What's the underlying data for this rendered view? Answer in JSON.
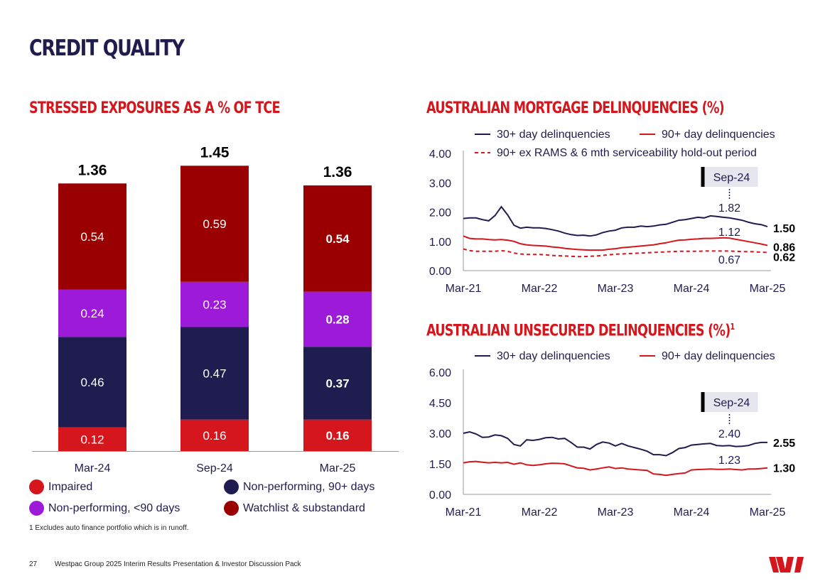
{
  "page": {
    "title": "CREDIT QUALITY",
    "footnote": "1 Excludes auto finance portfolio which is in runoff.",
    "page_number": "27",
    "footer_text": "Westpac Group 2025 Interim Results Presentation & Investor Discussion Pack"
  },
  "colors": {
    "navy": "#1f1c4f",
    "red": "#d5161d",
    "purple": "#9d1ad9",
    "maroon": "#9b0000"
  },
  "legend": {
    "impaired": "Impaired",
    "np90": "Non-performing, 90+ days",
    "np_lt90": "Non-performing, <90 days",
    "watchlist": "Watchlist & substandard"
  },
  "chart_data": [
    {
      "type": "bar",
      "stacked": true,
      "title": "STRESSED EXPOSURES AS A % OF TCE",
      "categories": [
        "Mar-24",
        "Sep-24",
        "Mar-25"
      ],
      "totals": [
        "1.36",
        "1.45",
        "1.36"
      ],
      "series": [
        {
          "name": "Impaired",
          "color": "#d5161d",
          "values": [
            0.12,
            0.16,
            0.16
          ],
          "labels": [
            "0.12",
            "0.16",
            "0.16"
          ]
        },
        {
          "name": "Non-performing, 90+ days",
          "color": "#1f1c4f",
          "values": [
            0.46,
            0.47,
            0.37
          ],
          "labels": [
            "0.46",
            "0.47",
            "0.37"
          ]
        },
        {
          "name": "Non-performing, <90 days",
          "color": "#9d1ad9",
          "values": [
            0.24,
            0.23,
            0.28
          ],
          "labels": [
            "0.24",
            "0.23",
            "0.28"
          ]
        },
        {
          "name": "Watchlist & substandard",
          "color": "#9b0000",
          "values": [
            0.54,
            0.59,
            0.54
          ],
          "labels": [
            "0.54",
            "0.59",
            "0.54"
          ]
        }
      ],
      "ylim": [
        0,
        1.5
      ]
    },
    {
      "type": "line",
      "title": "AUSTRALIAN MORTGAGE DELINQUENCIES (%)",
      "xlim": [
        0,
        48
      ],
      "xticks": [
        "Mar-21",
        "Mar-22",
        "Mar-23",
        "Mar-24",
        "Mar-25"
      ],
      "xtick_values": [
        0,
        12,
        24,
        36,
        48
      ],
      "yticks": [
        "0.00",
        "1.00",
        "2.00",
        "3.00",
        "4.00"
      ],
      "ylim": [
        0,
        4
      ],
      "annotation": {
        "label": "Sep-24",
        "x": 42,
        "values": [
          "1.82",
          "1.12",
          "0.67"
        ]
      },
      "series": [
        {
          "name": "30+ day delinquencies",
          "color": "#1f1c4f",
          "dash": false,
          "end_label": "1.50",
          "values": [
            1.78,
            1.8,
            1.8,
            1.74,
            1.7,
            1.88,
            2.18,
            1.9,
            1.55,
            1.45,
            1.48,
            1.46,
            1.46,
            1.44,
            1.4,
            1.35,
            1.28,
            1.23,
            1.2,
            1.21,
            1.18,
            1.22,
            1.3,
            1.35,
            1.38,
            1.46,
            1.48,
            1.48,
            1.52,
            1.5,
            1.52,
            1.56,
            1.58,
            1.65,
            1.72,
            1.74,
            1.78,
            1.82,
            1.8,
            1.87,
            1.85,
            1.82,
            1.8,
            1.76,
            1.72,
            1.65,
            1.6,
            1.57,
            1.5
          ]
        },
        {
          "name": "90+ day delinquencies",
          "color": "#d5161d",
          "dash": false,
          "end_label": "0.86",
          "values": [
            1.18,
            1.1,
            1.08,
            1.08,
            1.06,
            1.05,
            1.06,
            1.04,
            1.0,
            0.92,
            0.88,
            0.86,
            0.85,
            0.84,
            0.81,
            0.79,
            0.76,
            0.74,
            0.72,
            0.71,
            0.7,
            0.7,
            0.7,
            0.73,
            0.75,
            0.78,
            0.8,
            0.82,
            0.84,
            0.86,
            0.88,
            0.92,
            0.95,
            1.0,
            1.04,
            1.05,
            1.07,
            1.08,
            1.1,
            1.1,
            1.11,
            1.12,
            1.11,
            1.07,
            1.03,
            0.99,
            0.95,
            0.91,
            0.86
          ]
        },
        {
          "name": "90+ ex RAMS & 6 mth serviceability hold-out period",
          "color": "#d5161d",
          "dash": true,
          "end_label": "0.62",
          "values": [
            0.74,
            0.68,
            0.66,
            0.66,
            0.66,
            0.66,
            0.68,
            0.66,
            0.6,
            0.57,
            0.55,
            0.55,
            0.55,
            0.54,
            0.52,
            0.51,
            0.5,
            0.49,
            0.48,
            0.48,
            0.49,
            0.5,
            0.52,
            0.54,
            0.56,
            0.57,
            0.58,
            0.59,
            0.6,
            0.61,
            0.62,
            0.63,
            0.64,
            0.65,
            0.66,
            0.66,
            0.66,
            0.66,
            0.67,
            0.67,
            0.67,
            0.67,
            0.67,
            0.66,
            0.65,
            0.65,
            0.64,
            0.63,
            0.62
          ]
        }
      ]
    },
    {
      "type": "line",
      "title": "AUSTRALIAN UNSECURED DELINQUENCIES (%)",
      "title_sup": "1",
      "xlim": [
        0,
        48
      ],
      "xticks": [
        "Mar-21",
        "Mar-22",
        "Mar-23",
        "Mar-24",
        "Mar-25"
      ],
      "xtick_values": [
        0,
        12,
        24,
        36,
        48
      ],
      "yticks": [
        "0.00",
        "1.50",
        "3.00",
        "4.50",
        "6.00"
      ],
      "ylim": [
        0,
        6
      ],
      "annotation": {
        "label": "Sep-24",
        "x": 42,
        "values": [
          "2.40",
          "1.23"
        ]
      },
      "series": [
        {
          "name": "30+ day delinquencies",
          "color": "#1f1c4f",
          "dash": false,
          "end_label": "2.55",
          "values": [
            3.0,
            3.07,
            2.97,
            2.8,
            2.82,
            2.92,
            2.88,
            2.75,
            2.45,
            2.38,
            2.68,
            2.65,
            2.7,
            2.78,
            2.8,
            2.72,
            2.75,
            2.55,
            2.32,
            2.32,
            2.23,
            2.45,
            2.57,
            2.52,
            2.38,
            2.5,
            2.38,
            2.3,
            2.22,
            2.12,
            1.95,
            1.95,
            1.9,
            2.05,
            2.25,
            2.3,
            2.42,
            2.45,
            2.48,
            2.5,
            2.4,
            2.38,
            2.4,
            2.35,
            2.36,
            2.4,
            2.5,
            2.55,
            2.55
          ]
        },
        {
          "name": "90+ day delinquencies",
          "color": "#d5161d",
          "dash": false,
          "end_label": "1.30",
          "values": [
            1.55,
            1.6,
            1.62,
            1.58,
            1.55,
            1.57,
            1.55,
            1.57,
            1.48,
            1.55,
            1.45,
            1.42,
            1.45,
            1.5,
            1.53,
            1.52,
            1.5,
            1.4,
            1.3,
            1.28,
            1.2,
            1.25,
            1.3,
            1.35,
            1.27,
            1.3,
            1.25,
            1.22,
            1.2,
            1.18,
            1.0,
            0.98,
            0.93,
            0.98,
            1.02,
            1.05,
            1.2,
            1.22,
            1.23,
            1.25,
            1.23,
            1.23,
            1.25,
            1.22,
            1.2,
            1.25,
            1.25,
            1.27,
            1.3
          ]
        }
      ]
    }
  ]
}
